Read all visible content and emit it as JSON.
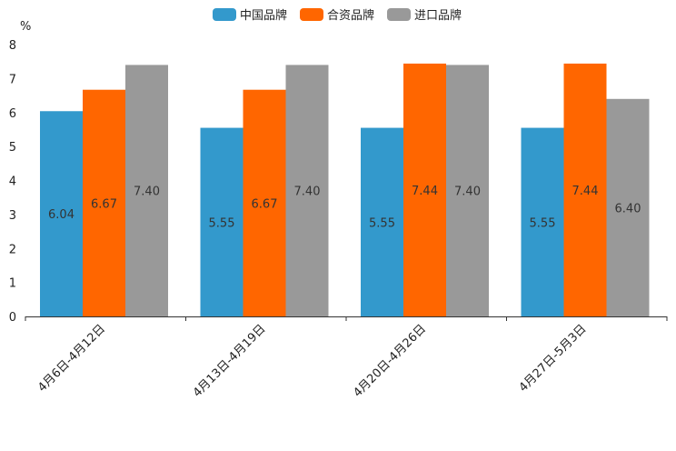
{
  "chart_data": {
    "type": "bar",
    "title": "",
    "xlabel": "",
    "ylabel": "%",
    "ylim": [
      0,
      8
    ],
    "yticks": [
      0,
      1,
      2,
      3,
      4,
      5,
      6,
      7,
      8
    ],
    "grid": false,
    "legend_position": "top-center",
    "categories": [
      "4月6日-4月12日",
      "4月13日-4月19日",
      "4月20日-4月26日",
      "4月27日-5月3日"
    ],
    "series": [
      {
        "name": "中国品牌",
        "color": "#3399cc",
        "values": [
          6.04,
          5.55,
          5.55,
          5.55
        ]
      },
      {
        "name": "合资品牌",
        "color": "#ff6600",
        "values": [
          6.67,
          6.67,
          7.44,
          7.44
        ]
      },
      {
        "name": "进口品牌",
        "color": "#999999",
        "values": [
          7.4,
          7.4,
          7.4,
          6.4
        ]
      }
    ]
  }
}
